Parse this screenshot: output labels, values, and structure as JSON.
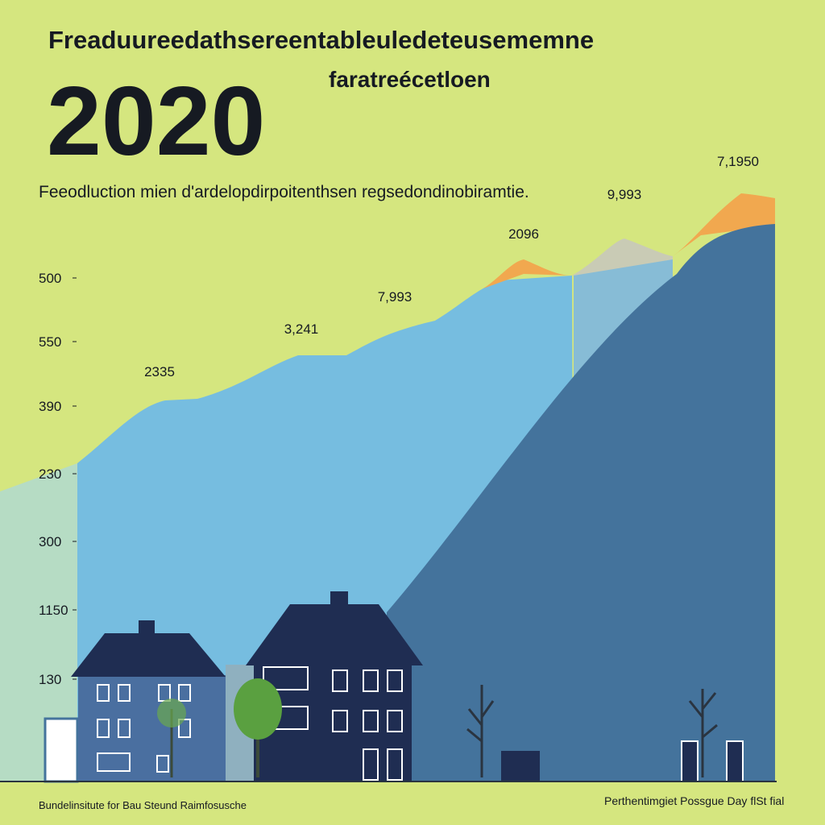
{
  "header": {
    "title": "Freaduureedathsereentableuledeteusememne",
    "year": "2020",
    "tagline": "faratreécetloen",
    "subtitle": "Feeodluction mien d'ardelopdirpoitenthsen regsedondinobiramtie."
  },
  "axis": {
    "labels": [
      "500",
      "550",
      "390",
      "230",
      "300",
      "1150",
      "130"
    ]
  },
  "annotations": [
    "2335",
    "3,241",
    "7,993",
    "2096",
    "9,993",
    "7,1950"
  ],
  "footer": {
    "left": "Bundelinsitute for Bau Steund Raimfosusche",
    "right": "Perthentimgiet Possgue Day flSt fial"
  }
}
